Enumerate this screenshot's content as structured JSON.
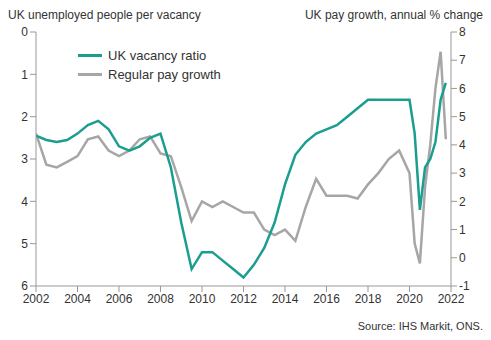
{
  "chart_data": {
    "type": "line",
    "ylabel": "UK unemployed people per vacancy",
    "y2label": "UK pay growth, annual % change",
    "annotation": "Source: IHS Markit, ONS.",
    "legend": "upper left",
    "grid": false,
    "x": [
      2002,
      2002.5,
      2003,
      2003.5,
      2004,
      2004.5,
      2005,
      2005.5,
      2006,
      2006.5,
      2007,
      2007.5,
      2008,
      2008.5,
      2009,
      2009.5,
      2010,
      2010.5,
      2011,
      2011.5,
      2012,
      2012.5,
      2013,
      2013.5,
      2014,
      2014.5,
      2015,
      2015.5,
      2016,
      2016.5,
      2017,
      2017.5,
      2018,
      2018.5,
      2019,
      2019.5,
      2020,
      2020.25,
      2020.5,
      2020.75,
      2021,
      2021.25,
      2021.5,
      2021.75
    ],
    "xlim": [
      2002,
      2022
    ],
    "xticks": [
      2002,
      2004,
      2006,
      2008,
      2010,
      2012,
      2014,
      2016,
      2018,
      2020,
      2022
    ],
    "ylim": [
      0,
      6
    ],
    "yticks": [
      0,
      1,
      2,
      3,
      4,
      5,
      6
    ],
    "y_reversed": true,
    "y2lim": [
      -1,
      8
    ],
    "y2ticks": [
      -1,
      0,
      1,
      2,
      3,
      4,
      5,
      6,
      7,
      8
    ],
    "series": [
      {
        "name": "UK vacancy ratio",
        "color": "#1a9e8f",
        "values": [
          2.45,
          2.55,
          2.6,
          2.55,
          2.4,
          2.2,
          2.1,
          2.3,
          2.7,
          2.8,
          2.7,
          2.5,
          2.4,
          3.2,
          4.5,
          5.6,
          5.2,
          5.2,
          5.4,
          5.6,
          5.8,
          5.5,
          5.1,
          4.5,
          3.6,
          2.9,
          2.6,
          2.4,
          2.3,
          2.2,
          2.0,
          1.8,
          1.6,
          1.6,
          1.6,
          1.6,
          1.6,
          2.4,
          4.2,
          3.2,
          3.0,
          2.6,
          1.6,
          1.2
        ]
      },
      {
        "name": "Regular pay growth",
        "color": "#a6a6a6",
        "axis": "y2",
        "values": [
          4.4,
          3.3,
          3.2,
          3.4,
          3.6,
          4.2,
          4.3,
          3.8,
          3.6,
          3.8,
          4.2,
          4.3,
          3.7,
          3.6,
          2.5,
          1.3,
          2.0,
          1.8,
          2.0,
          1.8,
          1.6,
          1.6,
          1.0,
          0.8,
          1.0,
          0.6,
          1.8,
          2.8,
          2.2,
          2.2,
          2.2,
          2.1,
          2.6,
          3.0,
          3.5,
          3.8,
          3.0,
          0.5,
          -0.2,
          2.5,
          4.0,
          6.0,
          7.3,
          4.2
        ]
      }
    ]
  }
}
